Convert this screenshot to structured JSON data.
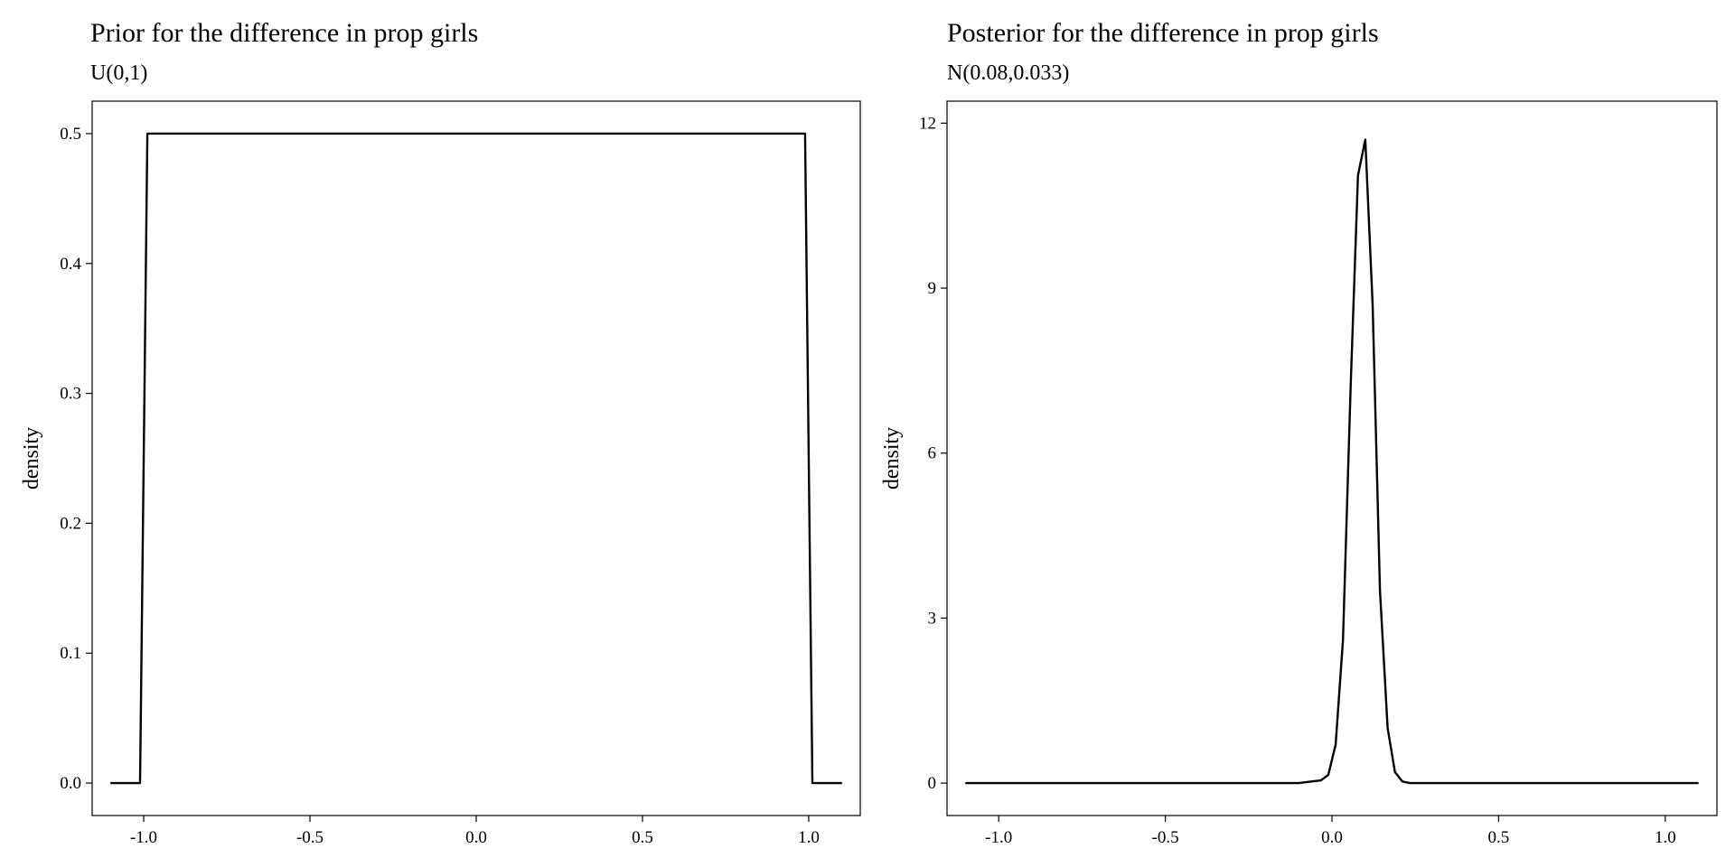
{
  "chart_data": [
    {
      "type": "line",
      "title": "Prior for the difference in prop girls",
      "subtitle": "U(0,1)",
      "xlabel": "",
      "ylabel": "density",
      "xlim": [
        -1.155,
        1.155
      ],
      "ylim": [
        -0.025,
        0.525
      ],
      "xticks": [
        -1.0,
        -0.5,
        0.0,
        0.5,
        1.0
      ],
      "xtick_labels": [
        "-1.0",
        "-0.5",
        "0.0",
        "0.5",
        "1.0"
      ],
      "yticks": [
        0.0,
        0.1,
        0.2,
        0.3,
        0.4,
        0.5
      ],
      "ytick_labels": [
        "0.0",
        "0.1",
        "0.2",
        "0.3",
        "0.4",
        "0.5"
      ],
      "grid": false,
      "line_color": "#000000",
      "series": [
        {
          "x": [
            -1.1,
            -1.011,
            -0.989,
            0.0,
            0.989,
            1.011,
            1.1
          ],
          "y": [
            0.0,
            0.0,
            0.5,
            0.5,
            0.5,
            0.0,
            0.0
          ]
        }
      ]
    },
    {
      "type": "line",
      "title": "Posterior for the difference in prop girls",
      "subtitle": "N(0.08,0.033)",
      "xlabel": "",
      "ylabel": "density",
      "xlim": [
        -1.155,
        1.155
      ],
      "ylim": [
        -0.59,
        12.4
      ],
      "xticks": [
        -1.0,
        -0.5,
        0.0,
        0.5,
        1.0
      ],
      "xtick_labels": [
        "-1.0",
        "-0.5",
        "0.0",
        "0.5",
        "1.0"
      ],
      "yticks": [
        0,
        3,
        6,
        9,
        12
      ],
      "ytick_labels": [
        "0",
        "3",
        "6",
        "9",
        "12"
      ],
      "grid": false,
      "line_color": "#000000",
      "series": [
        {
          "x": [
            -1.1,
            -0.4,
            -0.1,
            -0.033,
            -0.011,
            0.011,
            0.033,
            0.056,
            0.078,
            0.1,
            0.122,
            0.144,
            0.167,
            0.189,
            0.211,
            0.233,
            0.4,
            1.1
          ],
          "y": [
            0,
            0,
            0,
            0.05,
            0.15,
            0.7,
            2.6,
            7.2,
            11.05,
            11.7,
            8.7,
            3.5,
            1.0,
            0.2,
            0.03,
            0.0,
            0,
            0
          ]
        }
      ]
    }
  ]
}
